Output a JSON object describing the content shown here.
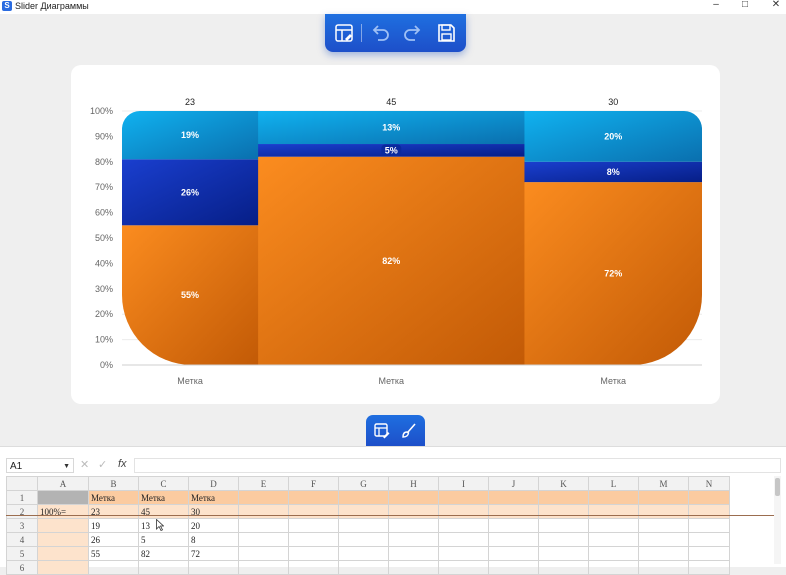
{
  "window": {
    "title": "Slider Диаграммы",
    "icon_letter": "S",
    "controls": [
      "minimize-icon",
      "maximize-icon",
      "close-icon"
    ]
  },
  "toolbar_top": {
    "buttons": [
      "layout-edit-icon",
      "undo-icon",
      "redo-icon",
      "save-icon"
    ]
  },
  "toolbar_mid": {
    "buttons": [
      "data-edit-icon",
      "brush-icon"
    ]
  },
  "chart_data": {
    "type": "bar",
    "variant": "100% stacked, variable width (mekko)",
    "categories": [
      "Метка",
      "Метка",
      "Метка"
    ],
    "widths": [
      23,
      45,
      30
    ],
    "series": [
      {
        "values": [
          55,
          82,
          72
        ],
        "color": "#f28a1e"
      },
      {
        "values": [
          26,
          5,
          8
        ],
        "color": "#0c2fb0"
      },
      {
        "values": [
          19,
          13,
          20
        ],
        "color": "#0c9ce0"
      }
    ],
    "data_labels": [
      [
        "55%",
        "26%",
        "19%"
      ],
      [
        "82%",
        "5%",
        "13%"
      ],
      [
        "72%",
        "8%",
        "20%"
      ]
    ],
    "top_labels": [
      "23",
      "45",
      "30"
    ],
    "yticks": [
      "0%",
      "10%",
      "20%",
      "30%",
      "40%",
      "50%",
      "60%",
      "70%",
      "80%",
      "90%",
      "100%"
    ],
    "ylim": [
      0,
      100
    ]
  },
  "sheet": {
    "namebox": "A1",
    "fx": "fx",
    "columns": [
      "A",
      "B",
      "C",
      "D",
      "E",
      "F",
      "G",
      "H",
      "I",
      "J",
      "K",
      "L",
      "M",
      "N"
    ],
    "rows": [
      {
        "num": "1",
        "cells": [
          "",
          "Метка",
          "Метка",
          "Метка"
        ]
      },
      {
        "num": "2",
        "cells": [
          "100%=",
          "23",
          "45",
          "30"
        ]
      },
      {
        "num": "3",
        "cells": [
          "",
          "19",
          "13",
          "20"
        ]
      },
      {
        "num": "4",
        "cells": [
          "",
          "26",
          "5",
          "8"
        ]
      },
      {
        "num": "5",
        "cells": [
          "",
          "55",
          "82",
          "72"
        ]
      },
      {
        "num": "6",
        "cells": [
          "",
          "",
          "",
          ""
        ]
      }
    ]
  }
}
